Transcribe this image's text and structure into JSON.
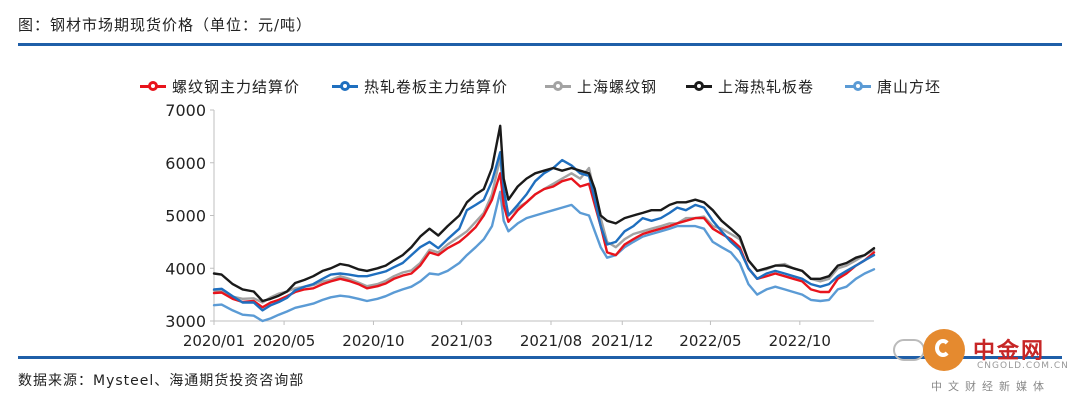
{
  "header": {
    "title": "图：钢材市场期现货价格（单位：元/吨）"
  },
  "footer": {
    "source": "数据来源：Mysteel、海通期货投资咨询部"
  },
  "watermark": {
    "brand": "中金网",
    "url": "CNGOLD.COM.CN",
    "tagline": "中文财经新媒体"
  },
  "chart_data": {
    "type": "line",
    "ylim": [
      3000,
      7000
    ],
    "yticks": [
      3000,
      4000,
      5000,
      6000,
      7000
    ],
    "grid": false,
    "legend_position": "top",
    "x": [
      "2020-01-02",
      "2020-01-15",
      "2020-02-03",
      "2020-02-20",
      "2020-03-10",
      "2020-03-25",
      "2020-04-08",
      "2020-04-22",
      "2020-05-06",
      "2020-05-20",
      "2020-06-05",
      "2020-06-20",
      "2020-07-06",
      "2020-07-20",
      "2020-08-05",
      "2020-08-20",
      "2020-09-05",
      "2020-09-20",
      "2020-10-08",
      "2020-10-22",
      "2020-11-05",
      "2020-11-20",
      "2020-12-05",
      "2020-12-20",
      "2021-01-05",
      "2021-01-20",
      "2021-02-05",
      "2021-02-25",
      "2021-03-10",
      "2021-03-25",
      "2021-04-08",
      "2021-04-22",
      "2021-05-06",
      "2021-05-12",
      "2021-05-20",
      "2021-06-05",
      "2021-06-20",
      "2021-07-05",
      "2021-07-20",
      "2021-08-05",
      "2021-08-20",
      "2021-09-05",
      "2021-09-20",
      "2021-10-05",
      "2021-10-15",
      "2021-10-25",
      "2021-11-05",
      "2021-11-20",
      "2021-12-05",
      "2021-12-20",
      "2022-01-05",
      "2022-01-20",
      "2022-02-05",
      "2022-02-20",
      "2022-03-05",
      "2022-03-20",
      "2022-04-05",
      "2022-04-20",
      "2022-05-05",
      "2022-05-20",
      "2022-06-05",
      "2022-06-20",
      "2022-07-05",
      "2022-07-20",
      "2022-08-05",
      "2022-08-20",
      "2022-09-05",
      "2022-09-20",
      "2022-10-05",
      "2022-10-20",
      "2022-11-05",
      "2022-11-20",
      "2022-12-05",
      "2022-12-20",
      "2023-01-05",
      "2023-01-20",
      "2023-02-05"
    ],
    "x_tick_labels": [
      "2020/01",
      "2020/05",
      "2020/10",
      "2021/03",
      "2021/08",
      "2021/12",
      "2022/05",
      "2022/10"
    ],
    "x_tick_positions": [
      "2020-01-02",
      "2020-05-01",
      "2020-10-01",
      "2021-03-01",
      "2021-08-01",
      "2021-12-01",
      "2022-05-01",
      "2022-10-01"
    ],
    "series": [
      {
        "name": "螺纹钢主力结算价",
        "color": "#e8141c",
        "values": [
          3530,
          3540,
          3420,
          3360,
          3380,
          3260,
          3350,
          3400,
          3470,
          3550,
          3600,
          3620,
          3700,
          3750,
          3800,
          3760,
          3700,
          3620,
          3660,
          3710,
          3800,
          3860,
          3900,
          4050,
          4300,
          4250,
          4380,
          4500,
          4620,
          4780,
          5000,
          5300,
          5800,
          5200,
          4880,
          5100,
          5250,
          5400,
          5500,
          5550,
          5650,
          5700,
          5550,
          5600,
          5200,
          4800,
          4300,
          4250,
          4450,
          4550,
          4650,
          4700,
          4750,
          4800,
          4850,
          4900,
          4950,
          4950,
          4750,
          4650,
          4550,
          4400,
          4000,
          3800,
          3850,
          3900,
          3850,
          3800,
          3750,
          3600,
          3550,
          3550,
          3800,
          3900,
          4050,
          4150,
          4300
        ]
      },
      {
        "name": "热轧卷板主力结算价",
        "color": "#1f6fbf",
        "values": [
          3600,
          3610,
          3470,
          3350,
          3350,
          3200,
          3300,
          3360,
          3440,
          3580,
          3650,
          3700,
          3800,
          3880,
          3900,
          3880,
          3850,
          3850,
          3900,
          3940,
          4020,
          4100,
          4250,
          4400,
          4500,
          4380,
          4550,
          4750,
          5100,
          5200,
          5300,
          5650,
          6200,
          5500,
          5000,
          5200,
          5400,
          5650,
          5800,
          5900,
          6050,
          5950,
          5800,
          5750,
          5300,
          4800,
          4450,
          4500,
          4700,
          4800,
          4950,
          4900,
          4950,
          5050,
          5150,
          5100,
          5200,
          5150,
          4900,
          4700,
          4500,
          4350,
          4000,
          3800,
          3900,
          3950,
          3900,
          3850,
          3800,
          3700,
          3650,
          3700,
          3850,
          3950,
          4050,
          4150,
          4250
        ]
      },
      {
        "name": "上海螺纹钢",
        "color": "#a3a3a3",
        "values": [
          3580,
          3560,
          3460,
          3420,
          3430,
          3350,
          3450,
          3520,
          3560,
          3620,
          3650,
          3680,
          3750,
          3780,
          3850,
          3800,
          3730,
          3660,
          3700,
          3760,
          3850,
          3920,
          3960,
          4100,
          4350,
          4300,
          4450,
          4600,
          4700,
          4880,
          5050,
          5400,
          6100,
          5350,
          5000,
          5150,
          5250,
          5400,
          5500,
          5600,
          5700,
          5800,
          5700,
          5900,
          5400,
          4950,
          4500,
          4400,
          4550,
          4650,
          4700,
          4750,
          4800,
          4850,
          4850,
          4950,
          4950,
          4980,
          4800,
          4750,
          4650,
          4550,
          4150,
          3950,
          3980,
          4050,
          4080,
          4000,
          3950,
          3800,
          3750,
          3800,
          4000,
          4050,
          4150,
          4250,
          4350
        ]
      },
      {
        "name": "上海热轧板卷",
        "color": "#1a1a1a",
        "values": [
          3900,
          3880,
          3700,
          3600,
          3560,
          3380,
          3420,
          3480,
          3560,
          3720,
          3780,
          3850,
          3950,
          4000,
          4080,
          4050,
          3980,
          3950,
          4000,
          4050,
          4150,
          4250,
          4400,
          4600,
          4750,
          4620,
          4800,
          5000,
          5250,
          5400,
          5500,
          5900,
          6700,
          5700,
          5300,
          5550,
          5700,
          5800,
          5850,
          5900,
          5850,
          5900,
          5850,
          5800,
          5500,
          5000,
          4900,
          4850,
          4950,
          5000,
          5050,
          5100,
          5100,
          5200,
          5250,
          5250,
          5300,
          5250,
          5100,
          4900,
          4750,
          4600,
          4150,
          3950,
          4000,
          4050,
          4050,
          4000,
          3950,
          3800,
          3800,
          3850,
          4050,
          4100,
          4200,
          4250,
          4380
        ]
      },
      {
        "name": "唐山方坯",
        "color": "#5b9bd5",
        "values": [
          3300,
          3310,
          3200,
          3120,
          3100,
          3000,
          3050,
          3120,
          3180,
          3250,
          3290,
          3330,
          3400,
          3450,
          3480,
          3460,
          3420,
          3380,
          3420,
          3470,
          3540,
          3600,
          3650,
          3750,
          3900,
          3880,
          3950,
          4100,
          4250,
          4400,
          4550,
          4800,
          5450,
          4900,
          4700,
          4850,
          4950,
          5000,
          5050,
          5100,
          5150,
          5200,
          5050,
          5000,
          4700,
          4400,
          4200,
          4250,
          4400,
          4500,
          4600,
          4650,
          4700,
          4750,
          4800,
          4800,
          4800,
          4750,
          4500,
          4400,
          4300,
          4100,
          3700,
          3500,
          3600,
          3650,
          3600,
          3550,
          3500,
          3400,
          3380,
          3400,
          3600,
          3650,
          3800,
          3900,
          3980
        ]
      }
    ]
  }
}
